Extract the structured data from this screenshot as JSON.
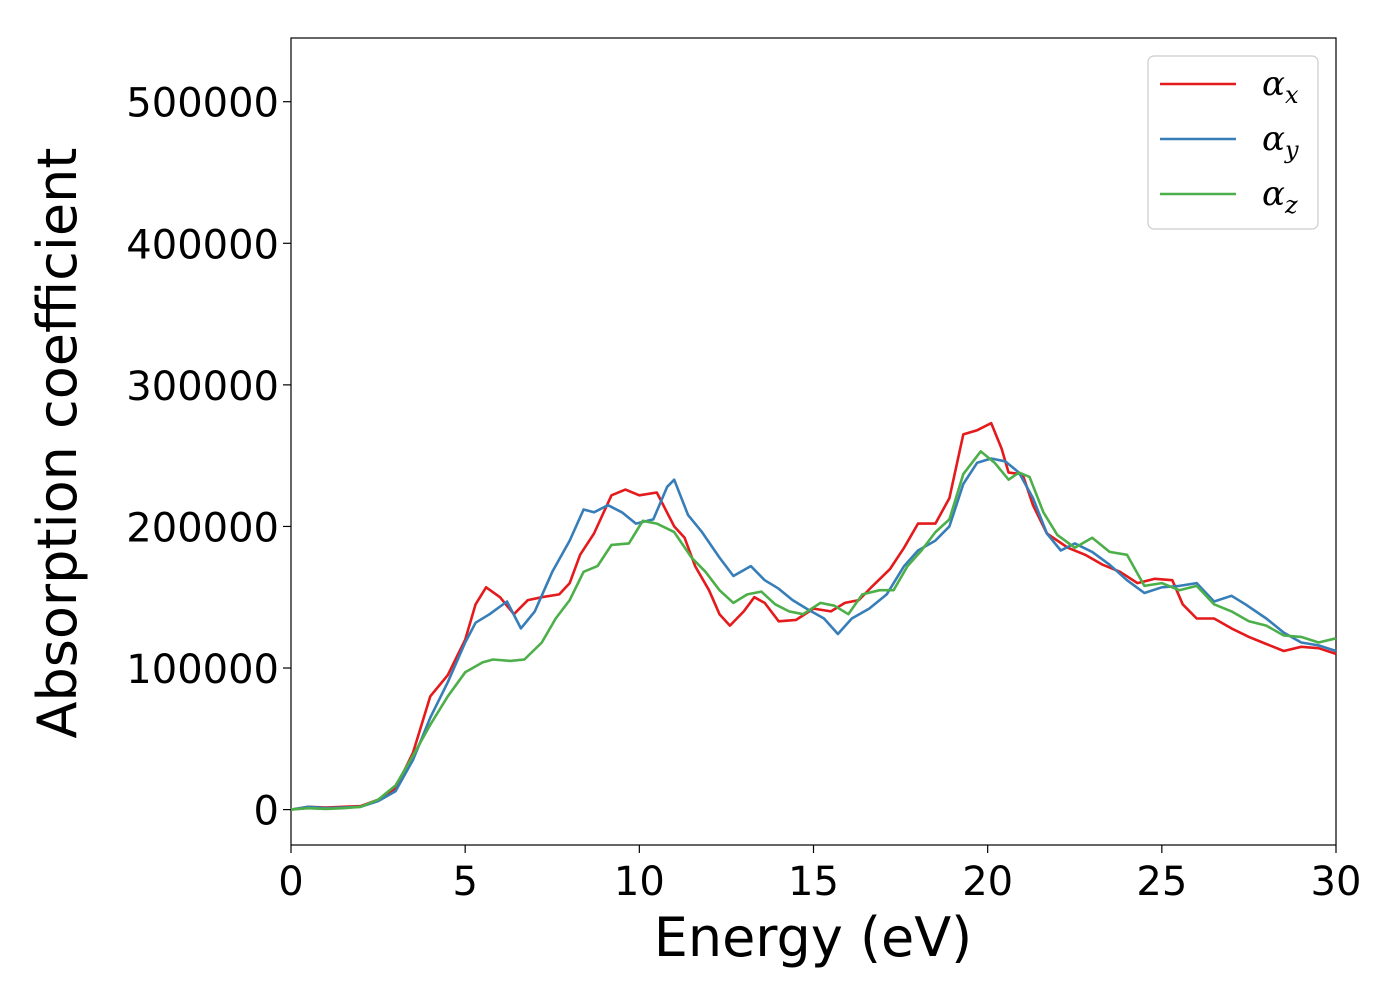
{
  "chart_data": {
    "type": "line",
    "title": "",
    "xlabel": "Energy (eV)",
    "ylabel": "Absorption coefficient",
    "xlim": [
      0,
      30
    ],
    "ylim": [
      -25000,
      545000
    ],
    "xticks": [
      0,
      5,
      10,
      15,
      20,
      25,
      30
    ],
    "yticks": [
      0,
      100000,
      200000,
      300000,
      400000,
      500000
    ],
    "grid": false,
    "legend": "top-right",
    "series": [
      {
        "name": "α",
        "subscript": "x",
        "color": "#e41a1c",
        "points": [
          [
            0,
            0
          ],
          [
            0.5,
            2000
          ],
          [
            1,
            1500
          ],
          [
            1.5,
            2000
          ],
          [
            2,
            2500
          ],
          [
            2.5,
            7000
          ],
          [
            3,
            15000
          ],
          [
            3.5,
            40000
          ],
          [
            4,
            80000
          ],
          [
            4.5,
            95000
          ],
          [
            5,
            120000
          ],
          [
            5.3,
            145000
          ],
          [
            5.6,
            157000
          ],
          [
            6,
            150000
          ],
          [
            6.4,
            138000
          ],
          [
            6.8,
            148000
          ],
          [
            7.2,
            150000
          ],
          [
            7.7,
            152000
          ],
          [
            8,
            160000
          ],
          [
            8.3,
            180000
          ],
          [
            8.7,
            195000
          ],
          [
            9.2,
            222000
          ],
          [
            9.6,
            226000
          ],
          [
            10,
            222000
          ],
          [
            10.5,
            224000
          ],
          [
            11,
            200000
          ],
          [
            11.3,
            192000
          ],
          [
            11.6,
            172000
          ],
          [
            12,
            155000
          ],
          [
            12.3,
            138000
          ],
          [
            12.6,
            130000
          ],
          [
            13,
            140000
          ],
          [
            13.3,
            150000
          ],
          [
            13.6,
            146000
          ],
          [
            14,
            133000
          ],
          [
            14.5,
            134000
          ],
          [
            15,
            142000
          ],
          [
            15.5,
            140000
          ],
          [
            15.9,
            146000
          ],
          [
            16.3,
            148000
          ],
          [
            16.7,
            158000
          ],
          [
            17.2,
            170000
          ],
          [
            17.6,
            185000
          ],
          [
            18,
            202000
          ],
          [
            18.5,
            202000
          ],
          [
            18.9,
            220000
          ],
          [
            19.3,
            265000
          ],
          [
            19.7,
            268000
          ],
          [
            20.1,
            273000
          ],
          [
            20.4,
            255000
          ],
          [
            20.6,
            238000
          ],
          [
            21,
            237000
          ],
          [
            21.3,
            215000
          ],
          [
            21.7,
            195000
          ],
          [
            22.3,
            185000
          ],
          [
            22.8,
            180000
          ],
          [
            23.3,
            173000
          ],
          [
            23.8,
            168000
          ],
          [
            24.3,
            160000
          ],
          [
            24.8,
            163000
          ],
          [
            25.3,
            162000
          ],
          [
            25.6,
            145000
          ],
          [
            26,
            135000
          ],
          [
            26.5,
            135000
          ],
          [
            27,
            128000
          ],
          [
            27.5,
            122000
          ],
          [
            28,
            117000
          ],
          [
            28.5,
            112000
          ],
          [
            29,
            115000
          ],
          [
            29.5,
            114000
          ],
          [
            30,
            110000
          ]
        ]
      },
      {
        "name": "α",
        "subscript": "y",
        "color": "#377eb8",
        "points": [
          [
            0,
            0
          ],
          [
            0.5,
            2000
          ],
          [
            1,
            1000
          ],
          [
            1.5,
            1500
          ],
          [
            2,
            2000
          ],
          [
            2.5,
            6000
          ],
          [
            3,
            13000
          ],
          [
            3.5,
            35000
          ],
          [
            4,
            65000
          ],
          [
            4.5,
            90000
          ],
          [
            5,
            118000
          ],
          [
            5.3,
            132000
          ],
          [
            5.7,
            138000
          ],
          [
            6.2,
            147000
          ],
          [
            6.6,
            128000
          ],
          [
            7,
            140000
          ],
          [
            7.5,
            168000
          ],
          [
            8,
            190000
          ],
          [
            8.4,
            212000
          ],
          [
            8.7,
            210000
          ],
          [
            9.1,
            215000
          ],
          [
            9.5,
            210000
          ],
          [
            9.9,
            202000
          ],
          [
            10.4,
            205000
          ],
          [
            10.8,
            228000
          ],
          [
            11,
            233000
          ],
          [
            11.4,
            208000
          ],
          [
            11.8,
            196000
          ],
          [
            12.3,
            178000
          ],
          [
            12.7,
            165000
          ],
          [
            13.2,
            172000
          ],
          [
            13.6,
            162000
          ],
          [
            14,
            156000
          ],
          [
            14.4,
            148000
          ],
          [
            14.8,
            142000
          ],
          [
            15.3,
            135000
          ],
          [
            15.7,
            124000
          ],
          [
            16.1,
            135000
          ],
          [
            16.6,
            142000
          ],
          [
            17.1,
            152000
          ],
          [
            17.6,
            172000
          ],
          [
            18,
            183000
          ],
          [
            18.5,
            190000
          ],
          [
            18.9,
            200000
          ],
          [
            19.3,
            230000
          ],
          [
            19.7,
            245000
          ],
          [
            20.1,
            248000
          ],
          [
            20.5,
            246000
          ],
          [
            20.9,
            238000
          ],
          [
            21.3,
            220000
          ],
          [
            21.7,
            195000
          ],
          [
            22.1,
            183000
          ],
          [
            22.5,
            188000
          ],
          [
            23,
            182000
          ],
          [
            23.5,
            173000
          ],
          [
            24,
            162000
          ],
          [
            24.5,
            153000
          ],
          [
            25,
            157000
          ],
          [
            25.5,
            158000
          ],
          [
            26,
            160000
          ],
          [
            26.5,
            147000
          ],
          [
            27,
            151000
          ],
          [
            27.4,
            145000
          ],
          [
            28,
            135000
          ],
          [
            28.5,
            125000
          ],
          [
            29,
            118000
          ],
          [
            29.5,
            116000
          ],
          [
            30,
            112000
          ]
        ]
      },
      {
        "name": "α",
        "subscript": "z",
        "color": "#4daf4a",
        "points": [
          [
            0,
            0
          ],
          [
            0.5,
            1000
          ],
          [
            1,
            500
          ],
          [
            1.5,
            1000
          ],
          [
            2,
            2000
          ],
          [
            2.5,
            7000
          ],
          [
            3,
            17000
          ],
          [
            3.5,
            38000
          ],
          [
            4,
            60000
          ],
          [
            4.5,
            80000
          ],
          [
            5,
            97000
          ],
          [
            5.5,
            104000
          ],
          [
            5.8,
            106000
          ],
          [
            6.3,
            105000
          ],
          [
            6.7,
            106000
          ],
          [
            7.2,
            118000
          ],
          [
            7.6,
            135000
          ],
          [
            8,
            148000
          ],
          [
            8.4,
            168000
          ],
          [
            8.8,
            172000
          ],
          [
            9.2,
            187000
          ],
          [
            9.7,
            188000
          ],
          [
            10.1,
            204000
          ],
          [
            10.5,
            202000
          ],
          [
            11,
            196000
          ],
          [
            11.5,
            178000
          ],
          [
            11.9,
            168000
          ],
          [
            12.3,
            155000
          ],
          [
            12.7,
            146000
          ],
          [
            13.1,
            152000
          ],
          [
            13.5,
            154000
          ],
          [
            13.9,
            145000
          ],
          [
            14.3,
            140000
          ],
          [
            14.7,
            138000
          ],
          [
            15.2,
            146000
          ],
          [
            15.6,
            144000
          ],
          [
            16,
            138000
          ],
          [
            16.4,
            152000
          ],
          [
            16.9,
            155000
          ],
          [
            17.3,
            155000
          ],
          [
            17.7,
            172000
          ],
          [
            18.1,
            183000
          ],
          [
            18.5,
            196000
          ],
          [
            18.9,
            205000
          ],
          [
            19.3,
            237000
          ],
          [
            19.8,
            253000
          ],
          [
            20.2,
            245000
          ],
          [
            20.6,
            233000
          ],
          [
            20.9,
            238000
          ],
          [
            21.2,
            235000
          ],
          [
            21.6,
            210000
          ],
          [
            22,
            194000
          ],
          [
            22.5,
            185000
          ],
          [
            23,
            192000
          ],
          [
            23.5,
            182000
          ],
          [
            24,
            180000
          ],
          [
            24.5,
            158000
          ],
          [
            25,
            160000
          ],
          [
            25.5,
            155000
          ],
          [
            26,
            158000
          ],
          [
            26.5,
            145000
          ],
          [
            27,
            140000
          ],
          [
            27.5,
            133000
          ],
          [
            28,
            130000
          ],
          [
            28.5,
            123000
          ],
          [
            29,
            122000
          ],
          [
            29.5,
            118000
          ],
          [
            30,
            121000
          ]
        ]
      }
    ]
  }
}
